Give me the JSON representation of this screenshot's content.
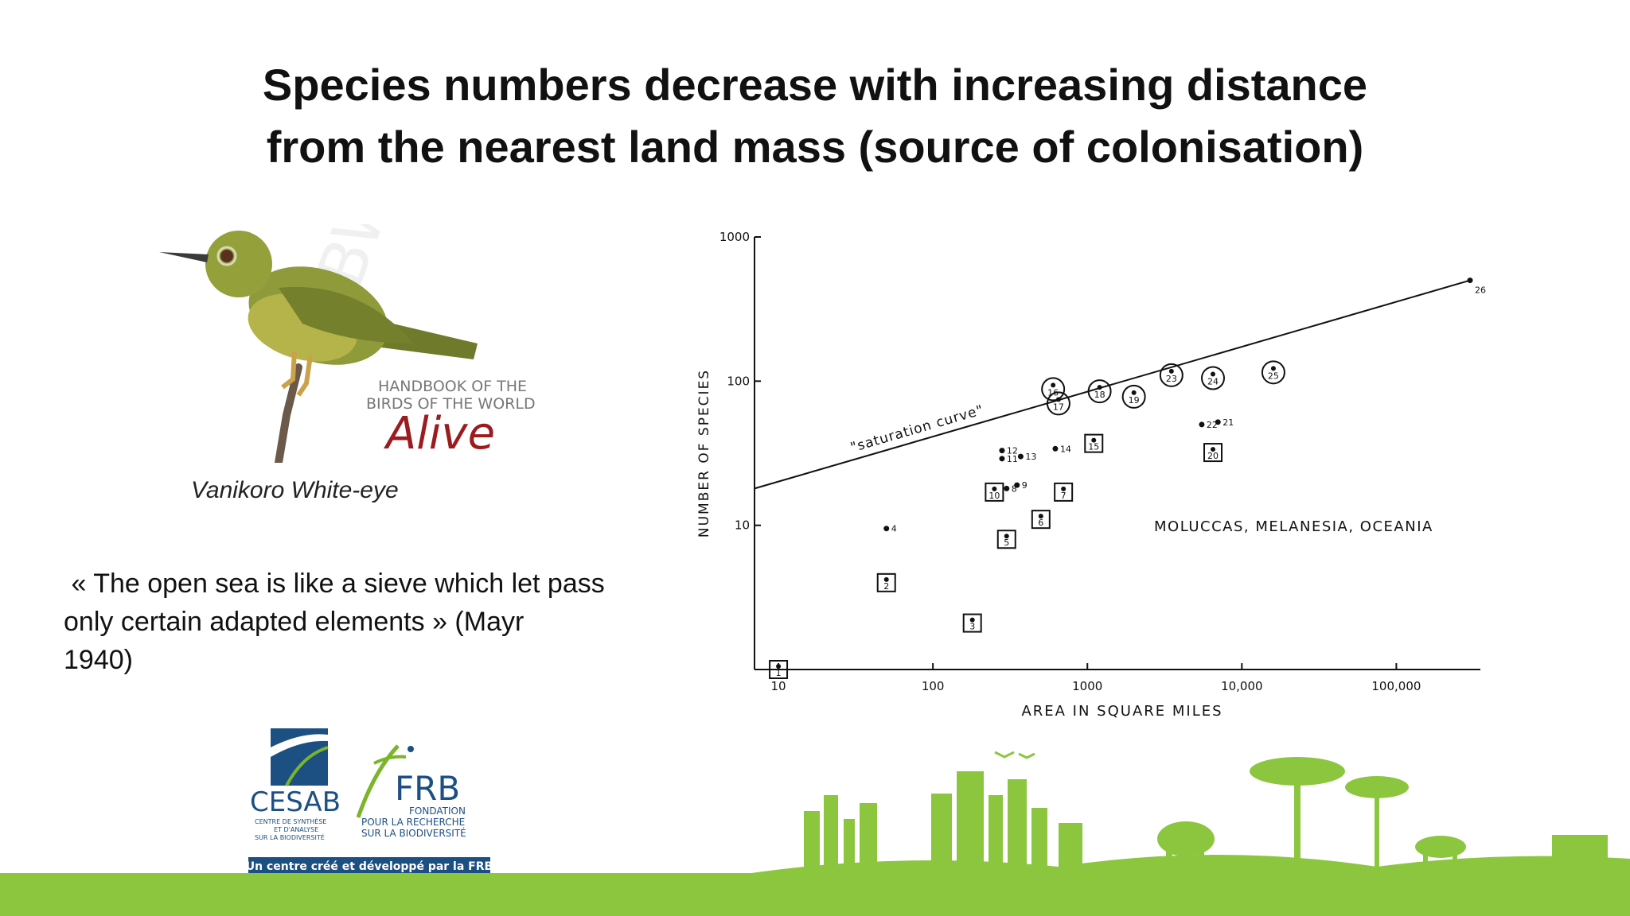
{
  "slide": {
    "title_line1": "Species numbers decrease with increasing distance",
    "title_line2": "from the nearest land mass  (source of colonisation)",
    "bird_caption": "Vanikoro White-eye",
    "watermark_line1": "HANDBOOK OF THE",
    "watermark_line2": "BIRDS OF THE WORLD",
    "watermark_line3": "Alive",
    "quote_line1": " « The open sea is like a sieve which let pass",
    "quote_line2": "only certain adapted elements » (Mayr",
    "quote_line3": "1940)"
  },
  "logos": {
    "cesab_name": "CESAB",
    "cesab_sub1": "CENTRE DE SYNTHÈSE",
    "cesab_sub2": "ET D'ANALYSE",
    "cesab_sub3": "SUR LA BIODIVERSITÉ",
    "frb_name": "FRB",
    "frb_sub1": "FONDATION",
    "frb_sub2": "POUR LA RECHERCHE",
    "frb_sub3": "SUR LA BIODIVERSITÉ",
    "banner": "Un centre créé et développé par la FRB"
  },
  "colors": {
    "accent_green": "#8cc63f",
    "logo_blue": "#1c4f82",
    "logo_green": "#7ab52a",
    "watermark_red": "#9b1b1f"
  },
  "chart_data": {
    "type": "scatter",
    "xlabel": "AREA  IN  SQUARE  MILES",
    "ylabel": "NUMBER  OF  SPECIES",
    "x_scale": "log",
    "y_scale": "log",
    "xlim": [
      7,
      350000
    ],
    "ylim": [
      1,
      1000
    ],
    "x_ticks": [
      10,
      100,
      1000,
      10000,
      100000
    ],
    "x_tick_labels": [
      "10",
      "100",
      "1000",
      "10,000",
      "100,000"
    ],
    "y_ticks": [
      10,
      100,
      1000
    ],
    "y_tick_labels": [
      "10",
      "100",
      "1000"
    ],
    "region_label": "MOLUCCAS, MELANESIA, OCEANIA",
    "curve_label": "\"saturation curve\"",
    "saturation_curve": {
      "x": [
        7,
        300000
      ],
      "y": [
        18,
        500
      ]
    },
    "points": [
      {
        "id": "1",
        "x": 10,
        "y": 1,
        "marker": "square"
      },
      {
        "id": "2",
        "x": 50,
        "y": 4,
        "marker": "square"
      },
      {
        "id": "3",
        "x": 180,
        "y": 2.1,
        "marker": "square"
      },
      {
        "id": "4",
        "x": 50,
        "y": 9.5,
        "marker": "dot"
      },
      {
        "id": "5",
        "x": 300,
        "y": 8,
        "marker": "square"
      },
      {
        "id": "6",
        "x": 500,
        "y": 11,
        "marker": "square"
      },
      {
        "id": "7",
        "x": 700,
        "y": 17,
        "marker": "square"
      },
      {
        "id": "8",
        "x": 300,
        "y": 18,
        "marker": "dot"
      },
      {
        "id": "9",
        "x": 350,
        "y": 19,
        "marker": "dot"
      },
      {
        "id": "10",
        "x": 250,
        "y": 17,
        "marker": "square"
      },
      {
        "id": "11",
        "x": 280,
        "y": 29,
        "marker": "dot"
      },
      {
        "id": "12",
        "x": 280,
        "y": 33,
        "marker": "dot"
      },
      {
        "id": "13",
        "x": 370,
        "y": 30,
        "marker": "dot"
      },
      {
        "id": "14",
        "x": 620,
        "y": 34,
        "marker": "dot"
      },
      {
        "id": "15",
        "x": 1100,
        "y": 37,
        "marker": "square"
      },
      {
        "id": "16",
        "x": 600,
        "y": 88,
        "marker": "circle"
      },
      {
        "id": "17",
        "x": 650,
        "y": 70,
        "marker": "circle"
      },
      {
        "id": "18",
        "x": 1200,
        "y": 85,
        "marker": "circle"
      },
      {
        "id": "19",
        "x": 2000,
        "y": 78,
        "marker": "circle"
      },
      {
        "id": "20",
        "x": 6500,
        "y": 32,
        "marker": "square"
      },
      {
        "id": "21",
        "x": 7000,
        "y": 52,
        "marker": "dot"
      },
      {
        "id": "22",
        "x": 5500,
        "y": 50,
        "marker": "dot"
      },
      {
        "id": "23",
        "x": 3500,
        "y": 110,
        "marker": "circle"
      },
      {
        "id": "24",
        "x": 6500,
        "y": 105,
        "marker": "circle"
      },
      {
        "id": "25",
        "x": 16000,
        "y": 115,
        "marker": "circle"
      },
      {
        "id": "26",
        "x": 300000,
        "y": 500,
        "marker": "dot"
      }
    ]
  }
}
